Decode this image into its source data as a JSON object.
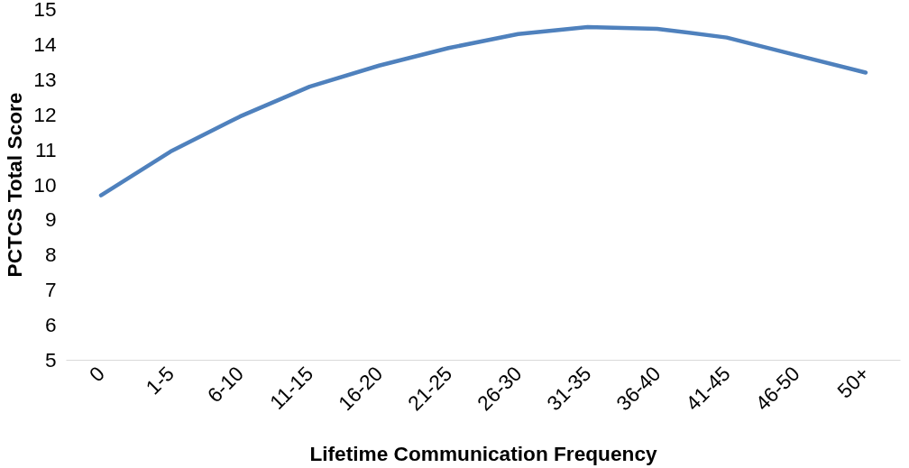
{
  "chart_data": {
    "type": "line",
    "xlabel": "Lifetime Communication Frequency",
    "ylabel": "PCTCS Total Score",
    "categories": [
      "0",
      "1-5",
      "6-10",
      "11-15",
      "16-20",
      "21-25",
      "26-30",
      "31-35",
      "36-40",
      "41-45",
      "46-50",
      "50+"
    ],
    "series": [
      {
        "color": "#4f81bd",
        "values": [
          9.7,
          10.95,
          11.95,
          12.8,
          13.4,
          13.9,
          14.3,
          14.5,
          14.45,
          14.2,
          13.7,
          13.2
        ]
      }
    ],
    "ylim": [
      5,
      15
    ],
    "yticks": [
      5,
      6,
      7,
      8,
      9,
      10,
      11,
      12,
      13,
      14,
      15
    ],
    "grid": false,
    "marker": "none",
    "line_style": "solid"
  }
}
